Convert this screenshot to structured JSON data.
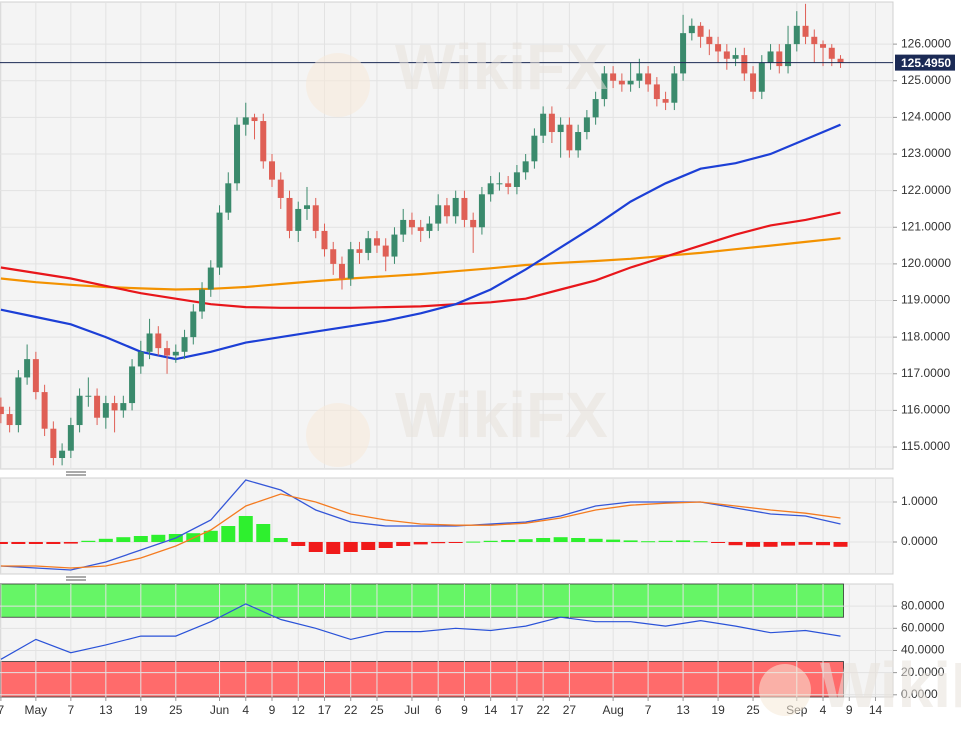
{
  "chart_data": [
    {
      "type": "candlestick",
      "watermark": "WikiFX",
      "up_color": "#3a8a6c",
      "down_color": "#df5f55",
      "xlim": [
        -0.1,
        102
      ],
      "ylim": [
        114.4,
        127.15
      ],
      "yticks": [
        {
          "value": 115,
          "label": "115.0000"
        },
        {
          "value": 116,
          "label": "116.0000"
        },
        {
          "value": 117,
          "label": "117.0000"
        },
        {
          "value": 118,
          "label": "118.0000"
        },
        {
          "value": 119,
          "label": "119.0000"
        },
        {
          "value": 120,
          "label": "120.0000"
        },
        {
          "value": 121,
          "label": "121.0000"
        },
        {
          "value": 122,
          "label": "122.0000"
        },
        {
          "value": 123,
          "label": "123.0000"
        },
        {
          "value": 124,
          "label": "124.0000"
        },
        {
          "value": 125,
          "label": "125.0000"
        },
        {
          "value": 126,
          "label": "126.0000"
        }
      ],
      "last_price": {
        "value": 125.495,
        "label": "125.4950"
      },
      "open": [
        116.1,
        115.9,
        115.6,
        116.9,
        117.4,
        116.5,
        115.5,
        114.7,
        114.9,
        115.6,
        116.4,
        116.4,
        115.8,
        116.2,
        116.0,
        116.2,
        117.2,
        117.6,
        118.1,
        117.7,
        117.5,
        117.6,
        118.0,
        118.7,
        119.3,
        119.9,
        121.4,
        122.2,
        123.8,
        124.0,
        123.9,
        122.8,
        122.3,
        121.8,
        120.9,
        121.5,
        121.6,
        120.9,
        120.4,
        120.0,
        119.6,
        120.4,
        120.3,
        120.7,
        120.5,
        120.2,
        120.8,
        121.2,
        121.0,
        120.9,
        121.1,
        121.6,
        121.3,
        121.8,
        121.2,
        121.0,
        121.9,
        122.2,
        122.2,
        122.1,
        122.5,
        122.8,
        123.5,
        124.1,
        123.6,
        123.8,
        123.1,
        123.6,
        124.0,
        124.5,
        125.2,
        125.0,
        124.9,
        125.0,
        125.2,
        124.9,
        124.5,
        124.4,
        125.2,
        126.3,
        126.5,
        126.2,
        126.0,
        125.8,
        125.6,
        125.7,
        125.2,
        124.7,
        125.5,
        125.8,
        125.4,
        126.0,
        126.5,
        126.2,
        126.0,
        125.9,
        125.6
      ],
      "high": [
        116.35,
        116.1,
        117.1,
        117.8,
        117.6,
        116.7,
        115.7,
        115.1,
        115.8,
        116.6,
        116.9,
        116.6,
        116.4,
        116.4,
        116.4,
        117.4,
        117.9,
        118.5,
        118.3,
        117.9,
        117.8,
        118.2,
        118.9,
        119.5,
        120.1,
        121.6,
        122.5,
        124.0,
        124.4,
        124.1,
        124.1,
        123.0,
        122.5,
        122.0,
        121.7,
        122.1,
        121.8,
        121.1,
        120.6,
        120.2,
        120.6,
        120.6,
        120.9,
        120.9,
        120.7,
        121.0,
        121.5,
        121.4,
        121.2,
        121.3,
        121.9,
        121.8,
        122.0,
        122.0,
        121.4,
        122.1,
        122.4,
        122.5,
        122.4,
        122.7,
        123.0,
        123.7,
        124.3,
        124.3,
        124.0,
        124.0,
        123.8,
        124.2,
        124.7,
        125.4,
        125.4,
        125.2,
        125.5,
        125.6,
        125.4,
        125.1,
        124.7,
        125.4,
        126.8,
        126.7,
        126.6,
        126.4,
        126.2,
        126.0,
        125.9,
        125.9,
        125.4,
        125.7,
        126.0,
        126.0,
        126.5,
        126.9,
        127.1,
        126.4,
        126.1,
        126.0,
        125.7
      ],
      "low": [
        115.65,
        115.4,
        115.4,
        116.7,
        116.3,
        115.3,
        114.5,
        114.5,
        114.7,
        115.4,
        116.1,
        115.6,
        115.5,
        115.4,
        115.8,
        116.0,
        117.0,
        117.4,
        117.5,
        117.0,
        117.3,
        117.4,
        117.8,
        118.5,
        119.1,
        119.7,
        121.2,
        122.0,
        123.5,
        123.4,
        122.6,
        122.1,
        121.5,
        120.7,
        120.6,
        121.2,
        120.7,
        120.2,
        119.7,
        119.3,
        119.4,
        120.0,
        120.1,
        120.3,
        119.8,
        120.0,
        120.6,
        120.8,
        120.6,
        120.7,
        120.9,
        121.1,
        121.1,
        121.0,
        120.3,
        120.8,
        121.7,
        122.0,
        121.9,
        121.9,
        122.3,
        122.6,
        123.3,
        123.3,
        122.9,
        122.9,
        122.9,
        123.4,
        123.8,
        124.3,
        124.8,
        124.7,
        124.7,
        124.8,
        124.7,
        124.3,
        124.2,
        124.2,
        125.0,
        126.1,
        125.9,
        125.7,
        125.5,
        125.3,
        125.4,
        125.0,
        124.5,
        124.5,
        125.3,
        125.2,
        125.2,
        125.8,
        126.0,
        125.5,
        125.4,
        125.4,
        125.35
      ],
      "close": [
        115.9,
        115.6,
        116.9,
        117.4,
        116.5,
        115.5,
        114.7,
        114.9,
        115.6,
        116.4,
        116.4,
        115.8,
        116.2,
        116.0,
        116.2,
        117.2,
        117.6,
        118.1,
        117.7,
        117.5,
        117.6,
        118.0,
        118.7,
        119.3,
        119.9,
        121.4,
        122.2,
        123.8,
        124.0,
        123.9,
        122.8,
        122.3,
        121.8,
        120.9,
        121.5,
        121.6,
        120.9,
        120.4,
        120.0,
        119.6,
        120.4,
        120.3,
        120.7,
        120.5,
        120.2,
        120.8,
        121.2,
        121.0,
        120.9,
        121.1,
        121.6,
        121.3,
        121.8,
        121.2,
        121.0,
        121.9,
        122.2,
        122.2,
        122.1,
        122.5,
        122.8,
        123.5,
        124.1,
        123.6,
        123.8,
        123.1,
        123.6,
        124.0,
        124.5,
        125.2,
        125.0,
        124.9,
        125.0,
        125.2,
        124.9,
        124.5,
        124.4,
        125.2,
        126.3,
        126.5,
        126.2,
        126.0,
        125.8,
        125.6,
        125.7,
        125.2,
        124.7,
        125.5,
        125.8,
        125.4,
        126.0,
        126.5,
        126.2,
        126.0,
        125.9,
        125.6,
        125.5
      ],
      "series": [
        {
          "color": "#f39200",
          "x": [
            0,
            4,
            8,
            12,
            16,
            20,
            24,
            28,
            32,
            36,
            40,
            44,
            48,
            52,
            56,
            60,
            64,
            68,
            72,
            76,
            80,
            84,
            88,
            92,
            96
          ],
          "values": [
            119.6,
            119.5,
            119.43,
            119.37,
            119.33,
            119.3,
            119.32,
            119.37,
            119.45,
            119.53,
            119.6,
            119.66,
            119.72,
            119.8,
            119.88,
            119.97,
            120.03,
            120.08,
            120.14,
            120.22,
            120.3,
            120.4,
            120.5,
            120.6,
            120.7
          ]
        },
        {
          "color": "#e8161b",
          "x": [
            0,
            4,
            8,
            12,
            16,
            20,
            24,
            28,
            32,
            36,
            40,
            44,
            48,
            52,
            56,
            60,
            64,
            68,
            72,
            76,
            80,
            84,
            88,
            92,
            96
          ],
          "values": [
            119.9,
            119.75,
            119.6,
            119.4,
            119.2,
            119.05,
            118.9,
            118.82,
            118.8,
            118.8,
            118.8,
            118.82,
            118.84,
            118.9,
            118.95,
            119.05,
            119.3,
            119.55,
            119.9,
            120.2,
            120.5,
            120.8,
            121.05,
            121.2,
            121.4
          ]
        },
        {
          "color": "#1c3fd6",
          "x": [
            0,
            4,
            8,
            12,
            16,
            20,
            24,
            28,
            32,
            36,
            40,
            44,
            48,
            52,
            56,
            60,
            64,
            68,
            72,
            76,
            80,
            84,
            88,
            92,
            96
          ],
          "values": [
            118.75,
            118.55,
            118.35,
            118.0,
            117.6,
            117.4,
            117.6,
            117.85,
            118.0,
            118.15,
            118.3,
            118.45,
            118.65,
            118.9,
            119.3,
            119.85,
            120.45,
            121.05,
            121.7,
            122.2,
            122.6,
            122.75,
            123.0,
            123.4,
            123.8
          ]
        }
      ]
    },
    {
      "type": "macd",
      "xlim": [
        -0.1,
        102
      ],
      "ylim": [
        -0.8,
        1.6
      ],
      "yticks": [
        {
          "value": 0,
          "label": "0.0000"
        },
        {
          "value": 1,
          "label": "1.0000"
        }
      ],
      "histogram": {
        "up_color": "#2ef02e",
        "down_color": "#f01a1a",
        "x": [
          0,
          2,
          4,
          6,
          8,
          10,
          12,
          14,
          16,
          18,
          20,
          22,
          24,
          26,
          28,
          30,
          32,
          34,
          36,
          38,
          40,
          42,
          44,
          46,
          48,
          50,
          52,
          54,
          56,
          58,
          60,
          62,
          64,
          66,
          68,
          70,
          72,
          74,
          76,
          78,
          80,
          82,
          84,
          86,
          88,
          90,
          92,
          94,
          96
        ],
        "values": [
          -0.05,
          -0.05,
          -0.05,
          -0.05,
          -0.04,
          0.03,
          0.08,
          0.12,
          0.15,
          0.18,
          0.2,
          0.22,
          0.28,
          0.4,
          0.65,
          0.45,
          0.1,
          -0.1,
          -0.25,
          -0.3,
          -0.25,
          -0.2,
          -0.15,
          -0.1,
          -0.06,
          -0.03,
          -0.02,
          0.01,
          0.03,
          0.05,
          0.07,
          0.1,
          0.12,
          0.1,
          0.08,
          0.06,
          0.04,
          0.02,
          0.03,
          0.04,
          0.02,
          -0.01,
          -0.08,
          -0.12,
          -0.12,
          -0.09,
          -0.07,
          -0.08,
          -0.12
        ]
      },
      "series": [
        {
          "color": "#3557d8",
          "x": [
            0,
            4,
            8,
            12,
            16,
            20,
            24,
            28,
            32,
            36,
            40,
            44,
            48,
            52,
            56,
            60,
            64,
            68,
            72,
            76,
            80,
            84,
            88,
            92,
            96
          ],
          "values": [
            -0.6,
            -0.65,
            -0.7,
            -0.5,
            -0.2,
            0.1,
            0.55,
            1.55,
            1.3,
            0.8,
            0.5,
            0.4,
            0.4,
            0.4,
            0.45,
            0.5,
            0.65,
            0.9,
            1.0,
            1.0,
            1.0,
            0.85,
            0.7,
            0.65,
            0.45
          ]
        },
        {
          "color": "#f47b20",
          "x": [
            0,
            4,
            8,
            12,
            16,
            20,
            24,
            28,
            32,
            36,
            40,
            44,
            48,
            52,
            56,
            60,
            64,
            68,
            72,
            76,
            80,
            84,
            88,
            92,
            96
          ],
          "values": [
            -0.6,
            -0.6,
            -0.65,
            -0.6,
            -0.4,
            -0.1,
            0.3,
            0.9,
            1.2,
            1.0,
            0.7,
            0.55,
            0.45,
            0.42,
            0.42,
            0.47,
            0.6,
            0.8,
            0.92,
            0.97,
            1.0,
            0.9,
            0.8,
            0.72,
            0.6
          ]
        }
      ]
    },
    {
      "type": "line",
      "xlim": [
        -0.1,
        102
      ],
      "ylim": [
        -2,
        100
      ],
      "yticks": [
        {
          "value": 0,
          "label": "0.0000"
        },
        {
          "value": 20,
          "label": "20.0000"
        },
        {
          "value": 40,
          "label": "40.0000"
        },
        {
          "value": 60,
          "label": "60.0000"
        },
        {
          "value": 80,
          "label": "80.0000"
        }
      ],
      "xticks": [
        {
          "value": 0,
          "label": "7"
        },
        {
          "value": 4,
          "label": "May"
        },
        {
          "value": 8,
          "label": "7"
        },
        {
          "value": 12,
          "label": "13"
        },
        {
          "value": 16,
          "label": "19"
        },
        {
          "value": 20,
          "label": "25"
        },
        {
          "value": 25,
          "label": "Jun"
        },
        {
          "value": 28,
          "label": "4"
        },
        {
          "value": 31,
          "label": "9"
        },
        {
          "value": 34,
          "label": "12"
        },
        {
          "value": 37,
          "label": "17"
        },
        {
          "value": 40,
          "label": "22"
        },
        {
          "value": 43,
          "label": "25"
        },
        {
          "value": 47,
          "label": "Jul"
        },
        {
          "value": 50,
          "label": "6"
        },
        {
          "value": 53,
          "label": "9"
        },
        {
          "value": 56,
          "label": "14"
        },
        {
          "value": 59,
          "label": "17"
        },
        {
          "value": 62,
          "label": "22"
        },
        {
          "value": 65,
          "label": "27"
        },
        {
          "value": 70,
          "label": "Aug"
        },
        {
          "value": 74,
          "label": "7"
        },
        {
          "value": 78,
          "label": "13"
        },
        {
          "value": 82,
          "label": "19"
        },
        {
          "value": 86,
          "label": "25"
        },
        {
          "value": 91,
          "label": "Sep"
        },
        {
          "value": 94,
          "label": "4"
        },
        {
          "value": 97,
          "label": "9"
        },
        {
          "value": 100,
          "label": "14"
        }
      ],
      "bands": [
        {
          "range": [
            70,
            100
          ],
          "color": "#66f566"
        },
        {
          "range": [
            -2,
            30
          ],
          "color": "#ff6b6b"
        }
      ],
      "series": [
        {
          "color": "#2a52d8",
          "x": [
            0,
            4,
            8,
            12,
            16,
            20,
            24,
            28,
            32,
            36,
            40,
            44,
            48,
            52,
            56,
            60,
            64,
            68,
            72,
            76,
            80,
            84,
            88,
            92,
            96
          ],
          "values": [
            32,
            50,
            38,
            45,
            53,
            53,
            66,
            82,
            68,
            60,
            50,
            57,
            57,
            60,
            58,
            62,
            70,
            66,
            66,
            62,
            67,
            62,
            56,
            58,
            53
          ]
        }
      ]
    }
  ]
}
